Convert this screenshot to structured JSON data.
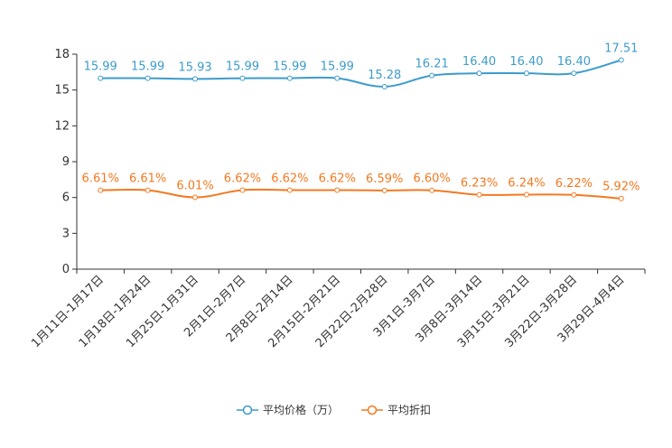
{
  "chart_data": {
    "type": "line",
    "title": "",
    "xlabel": "",
    "ylabel": "",
    "ylim": [
      0,
      18
    ],
    "yticks": [
      0,
      3,
      6,
      9,
      12,
      15,
      18
    ],
    "grid": false,
    "legend_position": "bottom-center",
    "categories": [
      "1月11日-1月17日",
      "1月18日-1月24日",
      "1月25日-1月31日",
      "2月1日-2月7日",
      "2月8日-2月14日",
      "2月15日-2月21日",
      "2月22日-2月28日",
      "3月1日-3月7日",
      "3月8日-3月14日",
      "3月15日-3月21日",
      "3月22日-3月28日",
      "3月29日-4月4日"
    ],
    "series": [
      {
        "name": "平均价格（万）",
        "color": "#3d9ccb",
        "values": [
          15.99,
          15.99,
          15.93,
          15.99,
          15.99,
          15.99,
          15.28,
          16.21,
          16.4,
          16.4,
          16.4,
          17.51
        ],
        "labels": [
          "15.99",
          "15.99",
          "15.93",
          "15.99",
          "15.99",
          "15.99",
          "15.28",
          "16.21",
          "16.40",
          "16.40",
          "16.40",
          "17.51"
        ]
      },
      {
        "name": "平均折扣",
        "color": "#f47920",
        "values": [
          6.61,
          6.61,
          6.01,
          6.62,
          6.62,
          6.62,
          6.59,
          6.6,
          6.23,
          6.24,
          6.22,
          5.92
        ],
        "labels": [
          "6.61%",
          "6.61%",
          "6.01%",
          "6.62%",
          "6.62%",
          "6.62%",
          "6.59%",
          "6.60%",
          "6.23%",
          "6.24%",
          "6.22%",
          "5.92%"
        ]
      }
    ]
  }
}
